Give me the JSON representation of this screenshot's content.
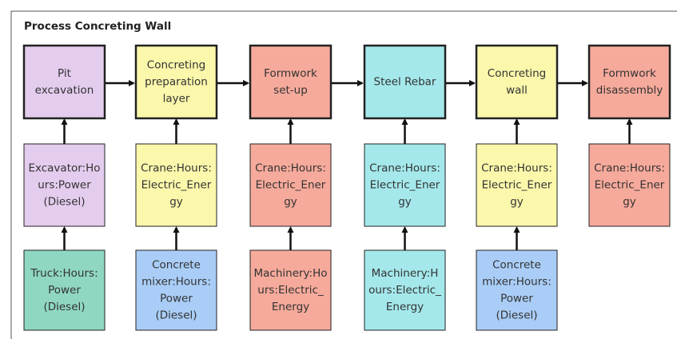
{
  "title": "Process Concreting Wall",
  "columns": [
    {
      "process": {
        "lines": [
          "Pit",
          "excavation"
        ],
        "color": "#e4ccee"
      },
      "resources": [
        {
          "lines": [
            "Excavator:Ho",
            "urs:Power",
            "(Diesel)"
          ],
          "color": "#e4ccee"
        },
        {
          "lines": [
            "Truck:Hours:",
            "Power",
            "(Diesel)"
          ],
          "color": "#8fd7c2"
        }
      ]
    },
    {
      "process": {
        "lines": [
          "Concreting",
          "preparation",
          "layer"
        ],
        "color": "#fbf7ab"
      },
      "resources": [
        {
          "lines": [
            "Crane:Hours:",
            "Electric_Ener",
            "gy"
          ],
          "color": "#fbf7ab"
        },
        {
          "lines": [
            "Concrete",
            "mixer:Hours:",
            "Power",
            "(Diesel)"
          ],
          "color": "#a9cdf6"
        }
      ]
    },
    {
      "process": {
        "lines": [
          "Formwork",
          "set-up"
        ],
        "color": "#f6aa9b"
      },
      "resources": [
        {
          "lines": [
            "Crane:Hours:",
            "Electric_Ener",
            "gy"
          ],
          "color": "#f6aa9b"
        },
        {
          "lines": [
            "Machinery:Ho",
            "urs:Electric_",
            "Energy"
          ],
          "color": "#f6aa9b"
        }
      ]
    },
    {
      "process": {
        "lines": [
          "Steel Rebar"
        ],
        "color": "#a4e8eb"
      },
      "resources": [
        {
          "lines": [
            "Crane:Hours:",
            "Electric_Ener",
            "gy"
          ],
          "color": "#a4e8eb"
        },
        {
          "lines": [
            "Machinery:H",
            "ours:Electric_",
            "Energy"
          ],
          "color": "#a4e8eb"
        }
      ]
    },
    {
      "process": {
        "lines": [
          "Concreting",
          "wall"
        ],
        "color": "#fbf7ab"
      },
      "resources": [
        {
          "lines": [
            "Crane:Hours:",
            "Electric_Ener",
            "gy"
          ],
          "color": "#fbf7ab"
        },
        {
          "lines": [
            "Concrete",
            "mixer:Hours:",
            "Power",
            "(Diesel)"
          ],
          "color": "#a9cdf6"
        }
      ]
    },
    {
      "process": {
        "lines": [
          "Formwork",
          "disassembly"
        ],
        "color": "#f6aa9b"
      },
      "resources": [
        {
          "lines": [
            "Crane:Hours:",
            "Electric_Ener",
            "gy"
          ],
          "color": "#f6aa9b"
        }
      ]
    }
  ]
}
